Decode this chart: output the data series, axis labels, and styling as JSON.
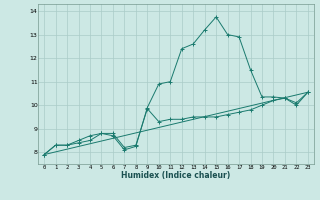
{
  "xlabel": "Humidex (Indice chaleur)",
  "bg_color": "#cce8e4",
  "grid_color": "#aaccc8",
  "line_color": "#1a7a6e",
  "xlim": [
    -0.5,
    23.5
  ],
  "ylim": [
    7.5,
    14.3
  ],
  "xticks": [
    0,
    1,
    2,
    3,
    4,
    5,
    6,
    7,
    8,
    9,
    10,
    11,
    12,
    13,
    14,
    15,
    16,
    17,
    18,
    19,
    20,
    21,
    22,
    23
  ],
  "yticks": [
    8,
    9,
    10,
    11,
    12,
    13,
    14
  ],
  "series_peak": {
    "x": [
      0,
      1,
      2,
      3,
      4,
      5,
      6,
      7,
      8,
      9,
      10,
      11,
      12,
      13,
      14,
      15,
      16,
      17,
      18,
      19,
      20,
      21,
      22,
      23
    ],
    "y": [
      7.9,
      8.3,
      8.3,
      8.5,
      8.7,
      8.8,
      8.7,
      8.1,
      8.25,
      9.9,
      10.9,
      11.0,
      12.4,
      12.6,
      13.2,
      13.75,
      13.0,
      12.9,
      11.5,
      10.35,
      10.35,
      10.3,
      10.0,
      10.55
    ]
  },
  "series_flat": {
    "x": [
      0,
      1,
      2,
      3,
      4,
      5,
      6,
      7,
      8,
      9,
      10,
      11,
      12,
      13,
      14,
      15,
      16,
      17,
      18,
      19,
      20,
      21,
      22,
      23
    ],
    "y": [
      7.9,
      8.3,
      8.3,
      8.4,
      8.5,
      8.8,
      8.8,
      8.2,
      8.3,
      9.85,
      9.3,
      9.4,
      9.4,
      9.5,
      9.5,
      9.5,
      9.6,
      9.7,
      9.8,
      10.0,
      10.2,
      10.3,
      10.1,
      10.55
    ]
  },
  "series_trend": {
    "x": [
      0,
      23
    ],
    "y": [
      7.9,
      10.55
    ]
  }
}
